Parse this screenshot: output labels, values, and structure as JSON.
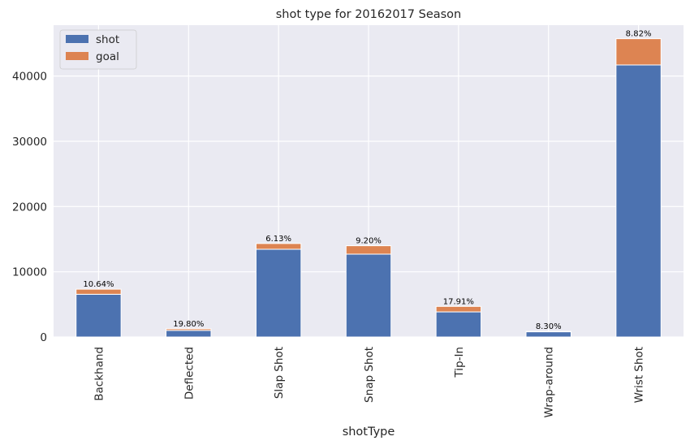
{
  "chart_data": {
    "type": "bar",
    "stacked": true,
    "title": "shot type for 20162017 Season",
    "xlabel": "shotType",
    "ylabel": "",
    "categories": [
      "Backhand",
      "Deflected",
      "Slap Shot",
      "Snap Shot",
      "Tip-In",
      "Wrap-around",
      "Wrist Shot"
    ],
    "series": [
      {
        "name": "shot",
        "values": [
          6550,
          1010,
          13450,
          12700,
          3850,
          800,
          41700
        ],
        "color": "#4c72b0"
      },
      {
        "name": "goal",
        "values": [
          780,
          250,
          880,
          1290,
          840,
          72,
          4030
        ],
        "color": "#dd8452"
      }
    ],
    "data_labels": [
      "10.64%",
      "19.80%",
      "6.13%",
      "9.20%",
      "17.91%",
      "8.30%",
      "8.82%"
    ],
    "yticks": [
      0,
      10000,
      20000,
      30000,
      40000
    ],
    "ylim": [
      0,
      47800
    ],
    "grid": true,
    "legend_position": "top-left",
    "background_color": "#eaeaf2",
    "grid_color": "#ffffff"
  }
}
